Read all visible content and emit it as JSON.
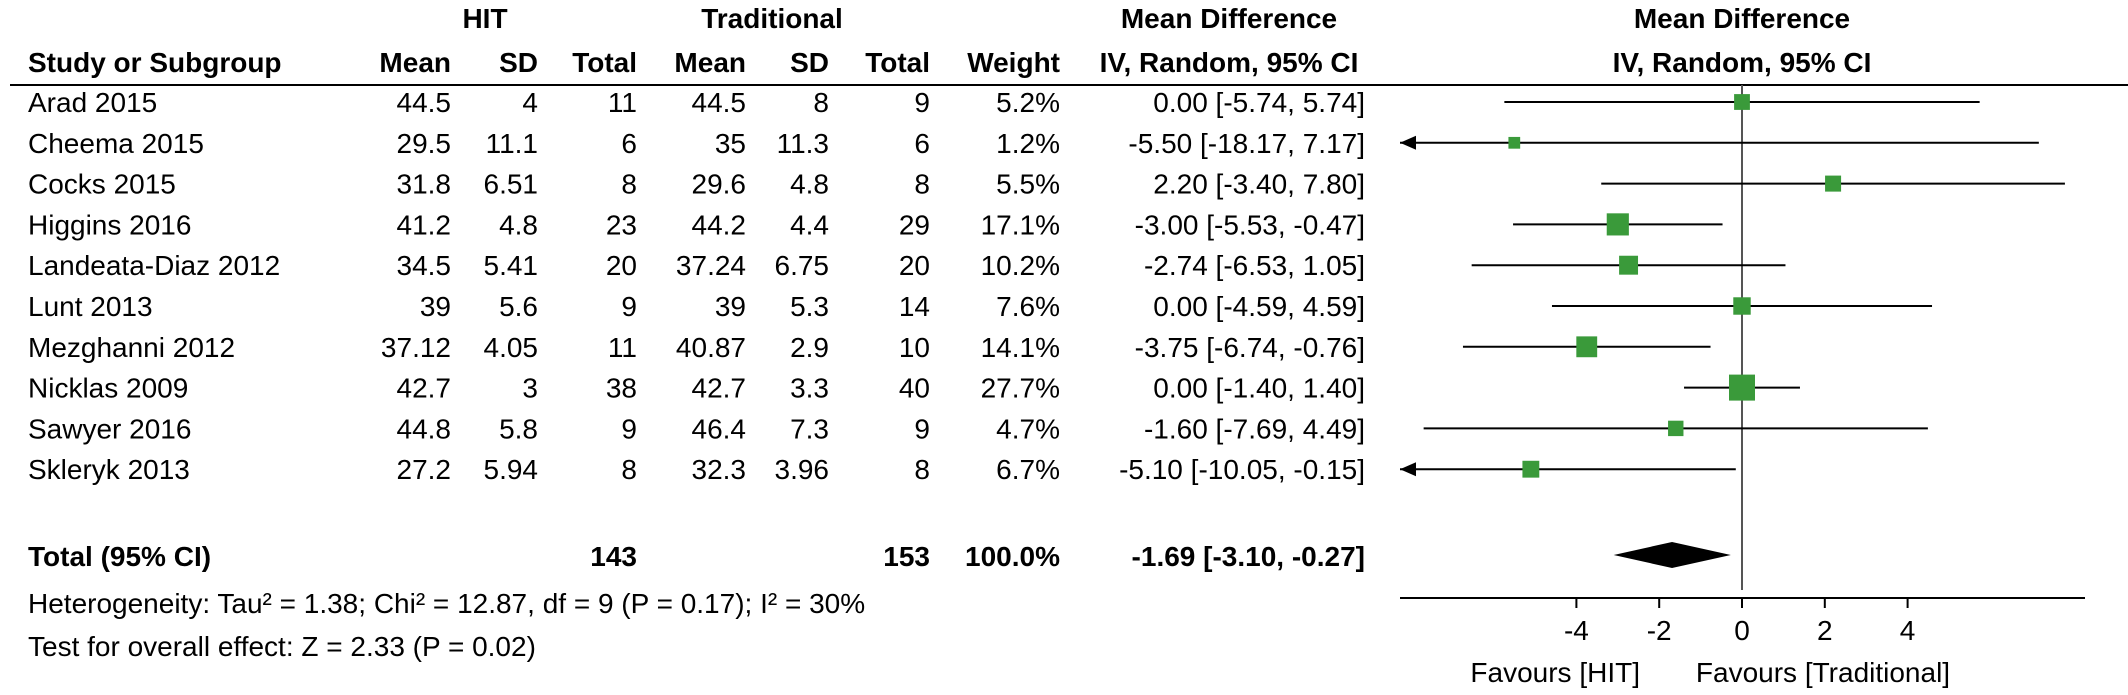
{
  "headers": {
    "group1": "HIT",
    "group2": "Traditional",
    "effect_title": "Mean Difference",
    "plot_title": "Mean Difference",
    "study": "Study or Subgroup",
    "mean1": "Mean",
    "sd1": "SD",
    "total1": "Total",
    "mean2": "Mean",
    "sd2": "SD",
    "total2": "Total",
    "weight": "Weight",
    "ci": "IV, Random, 95% CI",
    "plot_ci": "IV, Random, 95% CI"
  },
  "studies": [
    {
      "name": "Arad 2015",
      "mean1": "44.5",
      "sd1": "4",
      "total1": "11",
      "mean2": "44.5",
      "sd2": "8",
      "total2": "9",
      "weight": "5.2%",
      "ci_text": "0.00 [-5.74, 5.74]"
    },
    {
      "name": "Cheema 2015",
      "mean1": "29.5",
      "sd1": "11.1",
      "total1": "6",
      "mean2": "35",
      "sd2": "11.3",
      "total2": "6",
      "weight": "1.2%",
      "ci_text": "-5.50 [-18.17, 7.17]"
    },
    {
      "name": "Cocks 2015",
      "mean1": "31.8",
      "sd1": "6.51",
      "total1": "8",
      "mean2": "29.6",
      "sd2": "4.8",
      "total2": "8",
      "weight": "5.5%",
      "ci_text": "2.20 [-3.40, 7.80]"
    },
    {
      "name": "Higgins 2016",
      "mean1": "41.2",
      "sd1": "4.8",
      "total1": "23",
      "mean2": "44.2",
      "sd2": "4.4",
      "total2": "29",
      "weight": "17.1%",
      "ci_text": "-3.00 [-5.53, -0.47]"
    },
    {
      "name": "Landeata-Diaz 2012",
      "mean1": "34.5",
      "sd1": "5.41",
      "total1": "20",
      "mean2": "37.24",
      "sd2": "6.75",
      "total2": "20",
      "weight": "10.2%",
      "ci_text": "-2.74 [-6.53, 1.05]"
    },
    {
      "name": "Lunt 2013",
      "mean1": "39",
      "sd1": "5.6",
      "total1": "9",
      "mean2": "39",
      "sd2": "5.3",
      "total2": "14",
      "weight": "7.6%",
      "ci_text": "0.00 [-4.59, 4.59]"
    },
    {
      "name": "Mezghanni 2012",
      "mean1": "37.12",
      "sd1": "4.05",
      "total1": "11",
      "mean2": "40.87",
      "sd2": "2.9",
      "total2": "10",
      "weight": "14.1%",
      "ci_text": "-3.75 [-6.74, -0.76]"
    },
    {
      "name": "Nicklas 2009",
      "mean1": "42.7",
      "sd1": "3",
      "total1": "38",
      "mean2": "42.7",
      "sd2": "3.3",
      "total2": "40",
      "weight": "27.7%",
      "ci_text": "0.00 [-1.40, 1.40]"
    },
    {
      "name": "Sawyer 2016",
      "mean1": "44.8",
      "sd1": "5.8",
      "total1": "9",
      "mean2": "46.4",
      "sd2": "7.3",
      "total2": "9",
      "weight": "4.7%",
      "ci_text": "-1.60 [-7.69, 4.49]"
    },
    {
      "name": "Skleryk 2013",
      "mean1": "27.2",
      "sd1": "5.94",
      "total1": "8",
      "mean2": "32.3",
      "sd2": "3.96",
      "total2": "8",
      "weight": "6.7%",
      "ci_text": "-5.10 [-10.05, -0.15]"
    }
  ],
  "total": {
    "label": "Total (95% CI)",
    "total1": "143",
    "total2": "153",
    "weight": "100.0%",
    "ci_text": "-1.69 [-3.10, -0.27]"
  },
  "heterogeneity": "Heterogeneity: Tau² = 1.38; Chi² = 12.87, df = 9 (P = 0.17); I² = 30%",
  "overall_effect": "Test for overall effect: Z = 2.33 (P = 0.02)",
  "favours_left": "Favours [HIT]",
  "favours_right": "Favours [Traditional]",
  "colors": {
    "marker": "#3a9a3a",
    "diamond": "#000000",
    "line": "#000000",
    "zero_line": "#555555"
  },
  "chart_data": {
    "type": "forest",
    "x_ticks": [
      -4,
      -2,
      0,
      2,
      4
    ],
    "x_tick_labels": [
      "-4",
      "-2",
      "0",
      "2",
      "4"
    ],
    "xlim": [
      -8.2,
      8.2
    ],
    "studies": [
      {
        "name": "Arad 2015",
        "estimate": 0.0,
        "lower": -5.74,
        "upper": 5.74,
        "weight": 5.2
      },
      {
        "name": "Cheema 2015",
        "estimate": -5.5,
        "lower": -18.17,
        "upper": 7.17,
        "weight": 1.2
      },
      {
        "name": "Cocks 2015",
        "estimate": 2.2,
        "lower": -3.4,
        "upper": 7.8,
        "weight": 5.5
      },
      {
        "name": "Higgins 2016",
        "estimate": -3.0,
        "lower": -5.53,
        "upper": -0.47,
        "weight": 17.1
      },
      {
        "name": "Landeata-Diaz 2012",
        "estimate": -2.74,
        "lower": -6.53,
        "upper": 1.05,
        "weight": 10.2
      },
      {
        "name": "Lunt 2013",
        "estimate": 0.0,
        "lower": -4.59,
        "upper": 4.59,
        "weight": 7.6
      },
      {
        "name": "Mezghanni 2012",
        "estimate": -3.75,
        "lower": -6.74,
        "upper": -0.76,
        "weight": 14.1
      },
      {
        "name": "Nicklas 2009",
        "estimate": 0.0,
        "lower": -1.4,
        "upper": 1.4,
        "weight": 27.7
      },
      {
        "name": "Sawyer 2016",
        "estimate": -1.6,
        "lower": -7.69,
        "upper": 4.49,
        "weight": 4.7
      },
      {
        "name": "Skleryk 2013",
        "estimate": -5.1,
        "lower": -10.05,
        "upper": -0.15,
        "weight": 6.7
      }
    ],
    "pooled": {
      "estimate": -1.69,
      "lower": -3.1,
      "upper": -0.27
    }
  }
}
